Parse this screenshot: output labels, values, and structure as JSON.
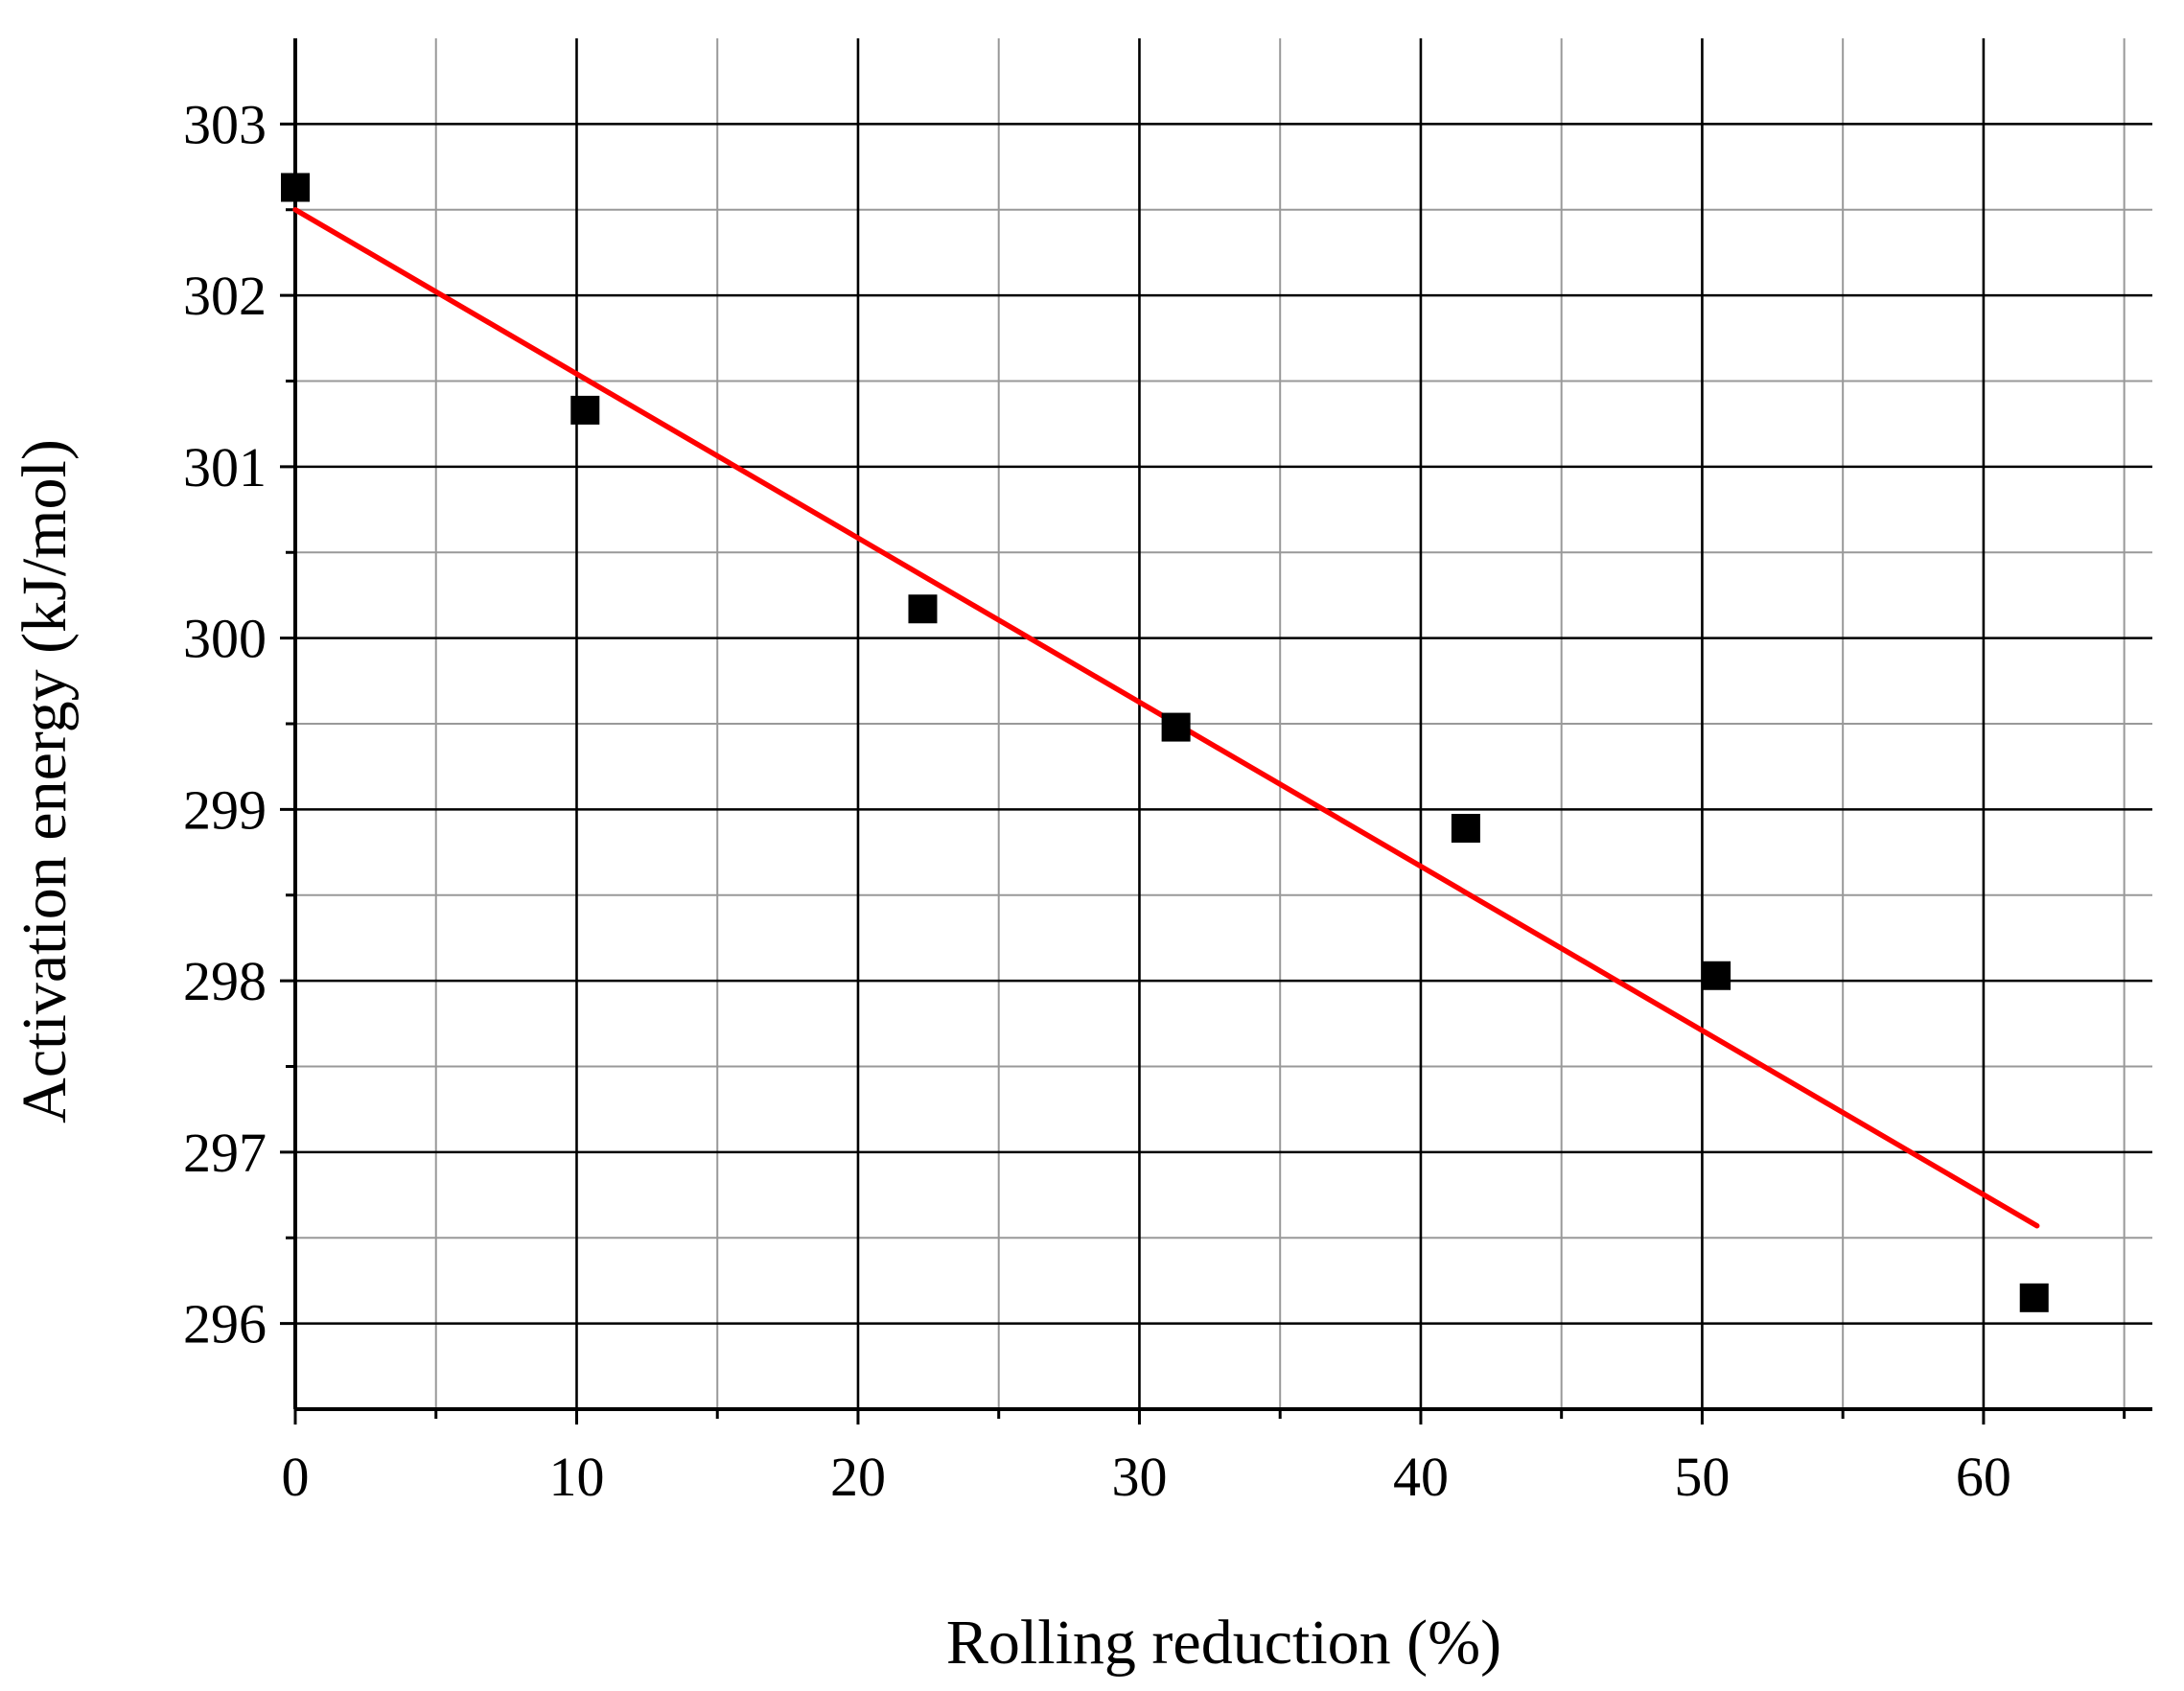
{
  "chart_data": {
    "type": "scatter",
    "xlabel": "Rolling reduction (%)",
    "ylabel": "Activation energy (kJ/mol)",
    "xlim": [
      0,
      66
    ],
    "ylim": [
      295.5,
      303.5
    ],
    "x_ticks": [
      0,
      10,
      20,
      30,
      40,
      50,
      60
    ],
    "y_ticks": [
      296,
      297,
      298,
      299,
      300,
      301,
      302,
      303
    ],
    "x_tick_labels": [
      "0",
      "10",
      "20",
      "30",
      "40",
      "50",
      "60"
    ],
    "y_tick_labels": [
      "296",
      "297",
      "298",
      "299",
      "300",
      "301",
      "302",
      "303"
    ],
    "grid": true,
    "series": [
      {
        "marker": "square",
        "color": "#000000",
        "x": [
          0,
          10.3,
          22.3,
          31.3,
          41.6,
          50.5,
          61.8
        ],
        "y": [
          302.63,
          301.33,
          300.17,
          299.48,
          298.89,
          298.03,
          296.15
        ]
      }
    ],
    "fit_line": {
      "color": "#ff0000",
      "x": [
        0,
        61.9
      ],
      "y": [
        302.5,
        296.57
      ]
    }
  }
}
